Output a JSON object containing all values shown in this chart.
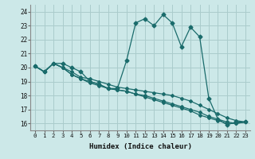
{
  "xlabel": "Humidex (Indice chaleur)",
  "xlim": [
    -0.5,
    23.5
  ],
  "ylim": [
    15.5,
    24.5
  ],
  "yticks": [
    16,
    17,
    18,
    19,
    20,
    21,
    22,
    23,
    24
  ],
  "xticks": [
    0,
    1,
    2,
    3,
    4,
    5,
    6,
    7,
    8,
    9,
    10,
    11,
    12,
    13,
    14,
    15,
    16,
    17,
    18,
    19,
    20,
    21,
    22,
    23
  ],
  "background_color": "#cce8e8",
  "grid_color": "#aacccc",
  "line_color": "#1a6b6b",
  "series": [
    [
      20.1,
      19.7,
      20.3,
      20.3,
      20.0,
      19.7,
      19.0,
      18.8,
      18.5,
      18.5,
      20.5,
      23.2,
      23.5,
      23.0,
      23.8,
      23.2,
      21.5,
      22.9,
      22.2,
      17.8,
      16.3,
      15.9,
      16.1,
      16.1
    ],
    [
      20.1,
      19.7,
      20.3,
      20.0,
      19.7,
      19.3,
      19.2,
      19.0,
      18.8,
      18.6,
      18.5,
      18.4,
      18.3,
      18.2,
      18.1,
      18.0,
      17.8,
      17.6,
      17.3,
      17.0,
      16.7,
      16.4,
      16.2,
      16.1
    ],
    [
      20.1,
      19.7,
      20.3,
      20.0,
      19.5,
      19.2,
      19.0,
      18.8,
      18.5,
      18.4,
      18.3,
      18.1,
      18.0,
      17.8,
      17.6,
      17.4,
      17.2,
      17.0,
      16.8,
      16.5,
      16.3,
      16.1,
      16.0,
      16.1
    ],
    [
      20.1,
      19.7,
      20.3,
      20.0,
      19.5,
      19.2,
      18.9,
      18.7,
      18.5,
      18.4,
      18.3,
      18.1,
      17.9,
      17.7,
      17.5,
      17.3,
      17.1,
      16.9,
      16.6,
      16.4,
      16.2,
      16.0,
      16.0,
      16.1
    ]
  ]
}
